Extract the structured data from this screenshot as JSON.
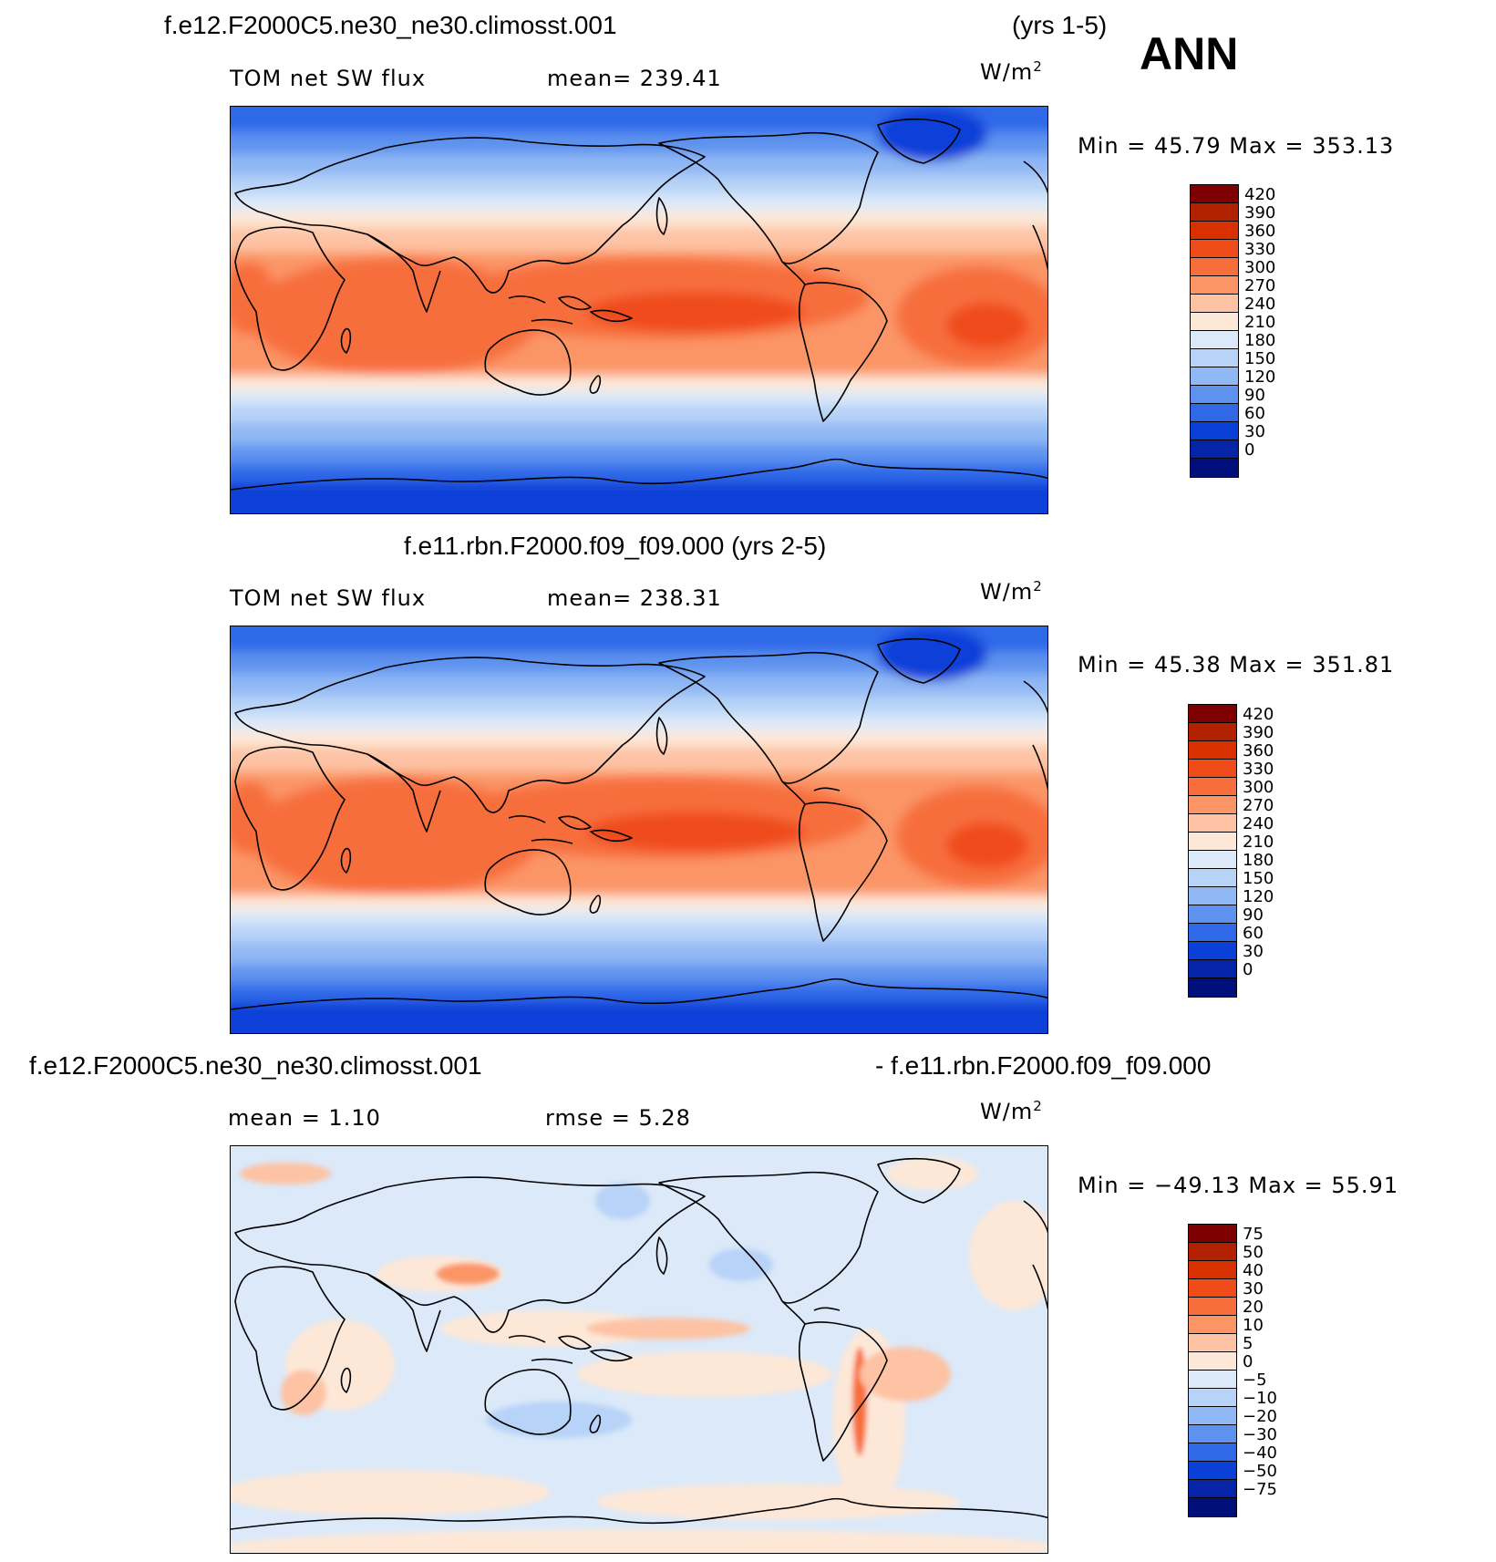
{
  "season": "ANN",
  "units_base": "W/m",
  "units_exp": "2",
  "panels": [
    {
      "title_left": "f.e12.F2000C5.ne30_ne30.climosst.001",
      "title_right": "(yrs 1-5)",
      "var_label": "TOM net SW flux",
      "stat": "mean= 239.41",
      "minmax": "Min =   45.79 Max = 353.13",
      "field": "abs"
    },
    {
      "title_center": "f.e11.rbn.F2000.f09_f09.000 (yrs 2-5)",
      "var_label": "TOM net SW flux",
      "stat": "mean= 238.31",
      "minmax": "Min =   45.38 Max = 351.81",
      "field": "abs"
    },
    {
      "title_left": "f.e12.F2000C5.ne30_ne30.climosst.001",
      "title_right": "- f.e11.rbn.F2000.f09_f09.000",
      "var_label": "mean =    1.10",
      "stat": "rmse =    5.28",
      "minmax": "Min = −49.13 Max =   55.91",
      "field": "diff"
    }
  ],
  "colorbars": {
    "abs": {
      "labels": [
        "420",
        "390",
        "360",
        "330",
        "300",
        "270",
        "240",
        "210",
        "180",
        "150",
        "120",
        "90",
        "60",
        "30",
        "0"
      ],
      "colors": [
        "#7f0000",
        "#b22200",
        "#d93000",
        "#f04c1a",
        "#f76e3c",
        "#fb9566",
        "#fdc3a4",
        "#fde8d8",
        "#dbe9f9",
        "#b7d3f7",
        "#90b8f4",
        "#5d93ef",
        "#2f69e8",
        "#0a40d8",
        "#0524a8",
        "#000f7a"
      ]
    },
    "diff": {
      "labels": [
        "75",
        "50",
        "40",
        "30",
        "20",
        "10",
        "5",
        "0",
        "−5",
        "−10",
        "−20",
        "−30",
        "−40",
        "−50",
        "−75"
      ],
      "colors": [
        "#7f0000",
        "#b22200",
        "#d93000",
        "#f04c1a",
        "#f76e3c",
        "#fb9566",
        "#fdc3a4",
        "#fde8d8",
        "#dbe9f9",
        "#b7d3f7",
        "#90b8f4",
        "#5d93ef",
        "#2f69e8",
        "#0a40d8",
        "#0524a8",
        "#000f7a"
      ]
    }
  }
}
